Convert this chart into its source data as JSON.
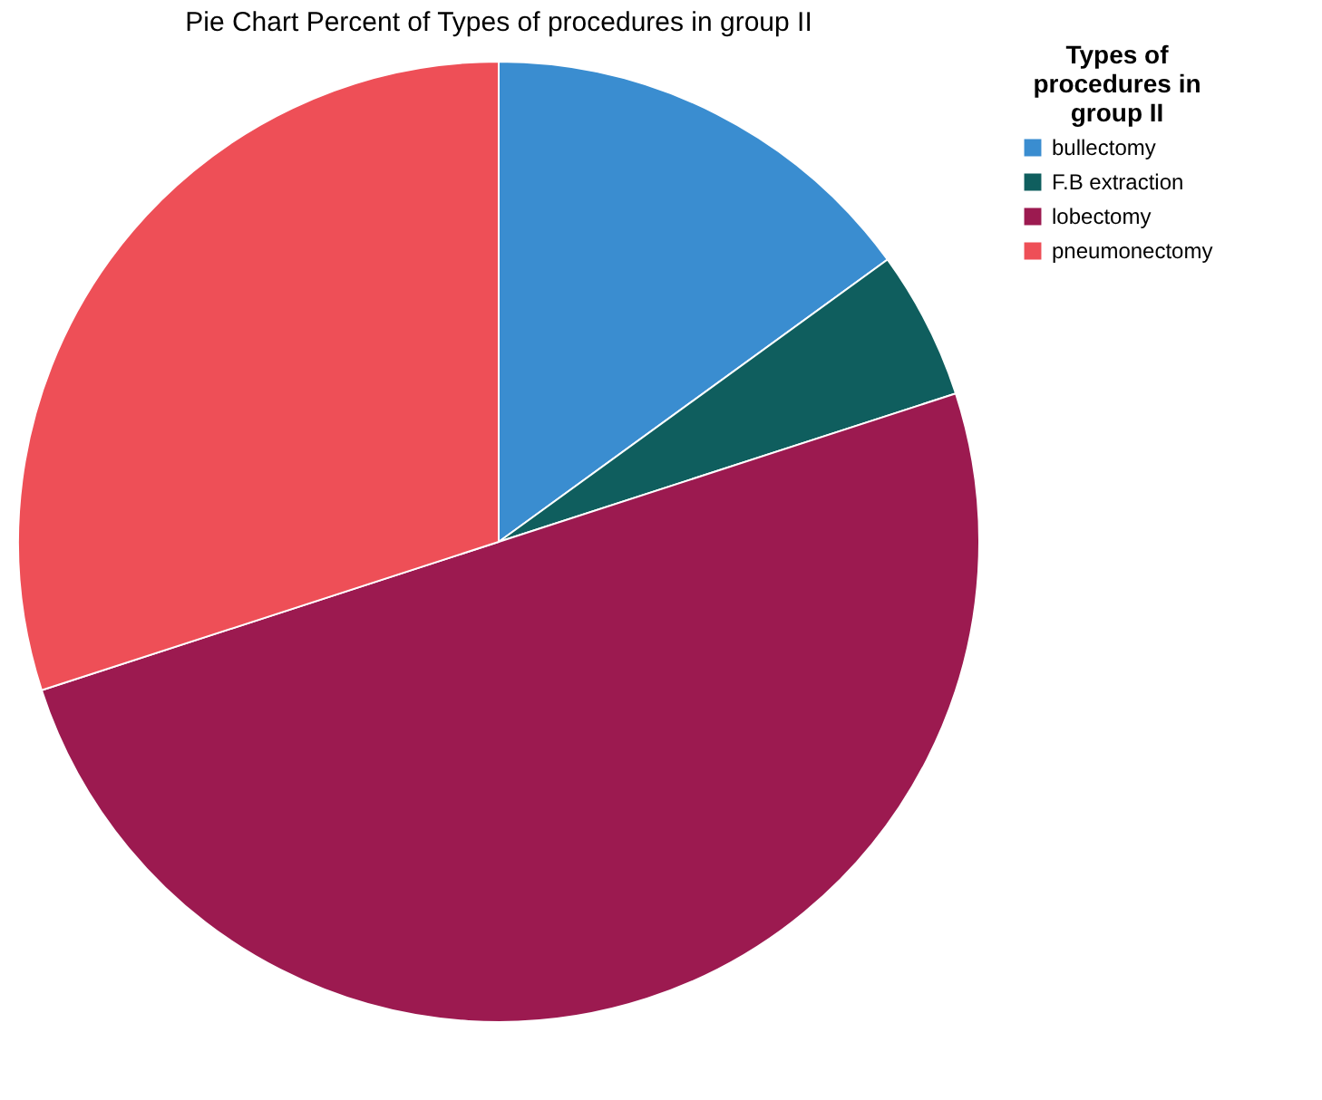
{
  "chart_data": {
    "type": "pie",
    "title": "Pie Chart Percent of Types of procedures in group II",
    "legend_title": "Types of procedures in group II",
    "legend": "top right",
    "categories": [
      "bullectomy",
      "F.B extraction",
      "lobectomy",
      "pneumonectomy"
    ],
    "values": [
      15,
      5,
      50,
      30
    ],
    "colors": [
      "#3a8dd0",
      "#0f5e5e",
      "#9c1a50",
      "#ee4f57"
    ]
  }
}
